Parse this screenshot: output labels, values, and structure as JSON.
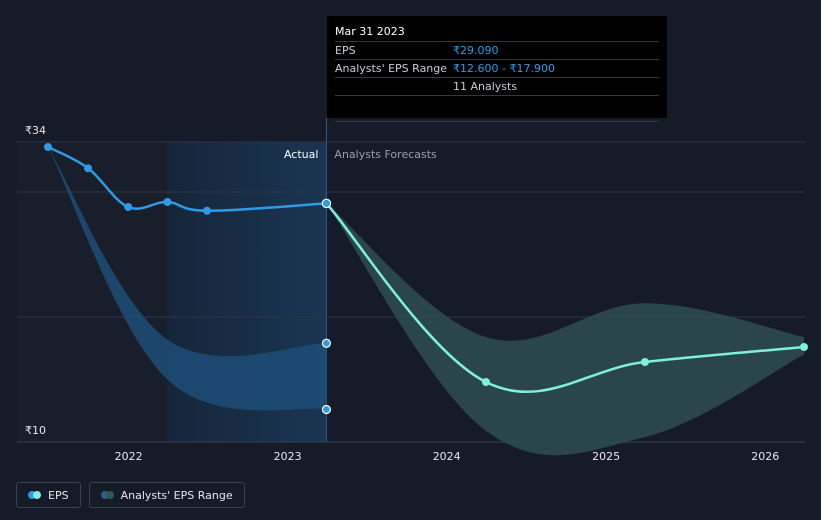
{
  "tooltip": {
    "date": "Mar 31 2023",
    "rows": [
      {
        "label": "EPS",
        "value": "₹29.090"
      },
      {
        "label": "Analysts' EPS Range",
        "value": "₹12.600 - ₹17.900"
      },
      {
        "label": "",
        "value": "11 Analysts"
      }
    ]
  },
  "legend": [
    {
      "label": "EPS",
      "colors": [
        "#2e9be6",
        "#7cf4e0"
      ]
    },
    {
      "label": "Analysts' EPS Range",
      "colors": [
        "#2a6192",
        "#2d5a57"
      ]
    }
  ],
  "colors": {
    "actual_line": "#2e9be6",
    "forecast_line": "#7ef0dd",
    "actual_band": "#1d4d78",
    "forecast_band": "#2c4b4c",
    "grid": "#303744",
    "background": "#151b27"
  },
  "chart_data": {
    "type": "line",
    "currency": "₹",
    "y_labels": [
      "₹34",
      "₹10"
    ],
    "ylim": [
      10,
      34
    ],
    "x_ticks": [
      "2022",
      "2023",
      "2024",
      "2025",
      "2026"
    ],
    "sections": {
      "actual": "Actual",
      "forecast": "Analysts Forecasts"
    },
    "actual_split_date": "2023-03-31",
    "shaded_from_date": "2022-03-31",
    "series": [
      {
        "name": "EPS",
        "kind": "actual",
        "points": [
          [
            "2021-06-30",
            33.6
          ],
          [
            "2021-09-30",
            31.9
          ],
          [
            "2021-12-31",
            28.8
          ],
          [
            "2022-03-31",
            29.2
          ],
          [
            "2022-06-30",
            28.5
          ],
          [
            "2023-03-31",
            29.09
          ]
        ]
      },
      {
        "name": "EPS",
        "kind": "forecast",
        "points": [
          [
            "2023-03-31",
            29.09
          ],
          [
            "2024-03-31",
            14.8
          ],
          [
            "2025-03-31",
            16.4
          ],
          [
            "2026-03-31",
            17.6
          ]
        ]
      }
    ],
    "ranges": [
      {
        "name": "Analysts' EPS Range",
        "kind": "actual",
        "high": [
          [
            "2021-06-30",
            33.6
          ],
          [
            "2022-03-31",
            18.2
          ],
          [
            "2023-03-31",
            17.9
          ]
        ],
        "low": [
          [
            "2021-06-30",
            33.6
          ],
          [
            "2022-03-31",
            15.0
          ],
          [
            "2023-03-31",
            12.6
          ]
        ]
      },
      {
        "name": "Analysts' EPS Range",
        "kind": "forecast",
        "high": [
          [
            "2023-03-31",
            29.09
          ],
          [
            "2024-03-31",
            18.4
          ],
          [
            "2025-03-31",
            21.1
          ],
          [
            "2026-03-31",
            18.4
          ]
        ],
        "low": [
          [
            "2023-03-31",
            29.09
          ],
          [
            "2024-03-31",
            10.9
          ],
          [
            "2025-03-31",
            10.4
          ],
          [
            "2026-03-31",
            17.0
          ]
        ]
      }
    ]
  }
}
